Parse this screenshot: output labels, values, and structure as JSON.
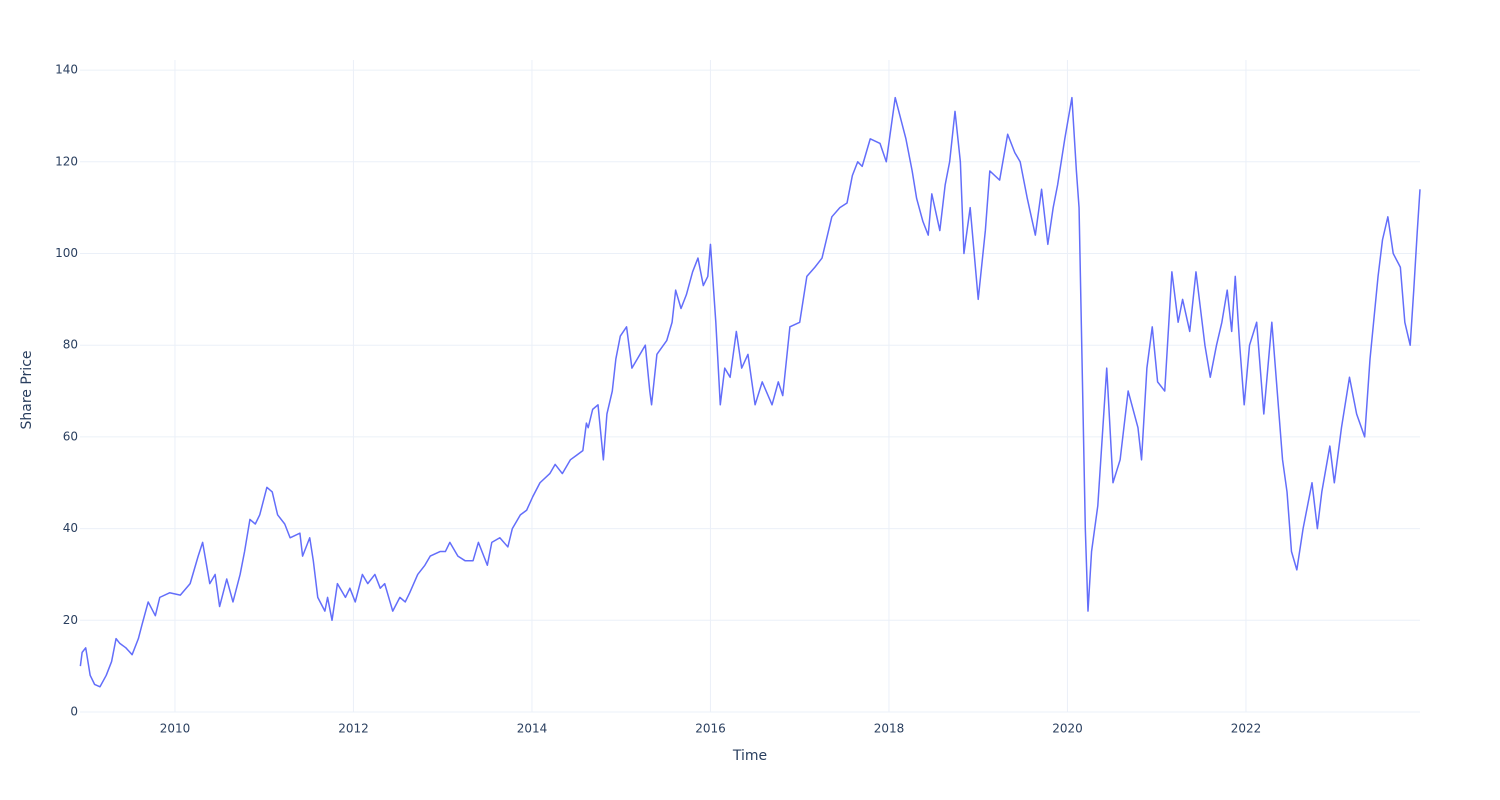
{
  "chart_data": {
    "type": "line",
    "x_label": "Time",
    "y_label": "Share Price",
    "color": "#636efa",
    "grid": true,
    "xlim": [
      2008.936,
      2023.95
    ],
    "ylim": [
      0,
      142.2
    ],
    "xticks": [
      2010,
      2012,
      2014,
      2016,
      2018,
      2020,
      2022
    ],
    "yticks": [
      0,
      20,
      40,
      60,
      80,
      100,
      120,
      140
    ],
    "x": [
      2008.94,
      2008.96,
      2009.0,
      2009.05,
      2009.1,
      2009.16,
      2009.23,
      2009.29,
      2009.34,
      2009.38,
      2009.45,
      2009.52,
      2009.59,
      2009.63,
      2009.7,
      2009.78,
      2009.83,
      2009.94,
      2010.06,
      2010.17,
      2010.26,
      2010.31,
      2010.39,
      2010.45,
      2010.5,
      2010.58,
      2010.65,
      2010.73,
      2010.78,
      2010.84,
      2010.9,
      2010.95,
      2011.03,
      2011.09,
      2011.15,
      2011.23,
      2011.29,
      2011.4,
      2011.43,
      2011.51,
      2011.55,
      2011.6,
      2011.68,
      2011.71,
      2011.76,
      2011.82,
      2011.91,
      2011.96,
      2012.02,
      2012.1,
      2012.16,
      2012.24,
      2012.3,
      2012.35,
      2012.41,
      2012.44,
      2012.52,
      2012.58,
      2012.63,
      2012.72,
      2012.8,
      2012.86,
      2012.97,
      2013.03,
      2013.08,
      2013.17,
      2013.25,
      2013.34,
      2013.4,
      2013.44,
      2013.5,
      2013.55,
      2013.64,
      2013.73,
      2013.78,
      2013.87,
      2013.94,
      2014.01,
      2014.09,
      2014.2,
      2014.26,
      2014.34,
      2014.43,
      2014.5,
      2014.57,
      2014.61,
      2014.63,
      2014.68,
      2014.74,
      2014.76,
      2014.8,
      2014.84,
      2014.9,
      2014.94,
      2014.99,
      2015.06,
      2015.12,
      2015.18,
      2015.27,
      2015.32,
      2015.34,
      2015.4,
      2015.51,
      2015.57,
      2015.61,
      2015.67,
      2015.73,
      2015.8,
      2015.86,
      2015.92,
      2015.97,
      2016.0,
      2016.06,
      2016.11,
      2016.16,
      2016.22,
      2016.29,
      2016.35,
      2016.42,
      2016.5,
      2016.58,
      2016.69,
      2016.76,
      2016.81,
      2016.89,
      2017.0,
      2017.08,
      2017.17,
      2017.25,
      2017.36,
      2017.45,
      2017.53,
      2017.59,
      2017.65,
      2017.7,
      2017.79,
      2017.9,
      2017.97,
      2018.07,
      2018.15,
      2018.19,
      2018.26,
      2018.31,
      2018.38,
      2018.44,
      2018.48,
      2018.57,
      2018.63,
      2018.68,
      2018.74,
      2018.8,
      2018.84,
      2018.91,
      2019.0,
      2019.08,
      2019.13,
      2019.24,
      2019.33,
      2019.41,
      2019.47,
      2019.55,
      2019.64,
      2019.71,
      2019.78,
      2019.84,
      2019.89,
      2019.97,
      2020.05,
      2020.1,
      2020.13,
      2020.16,
      2020.2,
      2020.23,
      2020.27,
      2020.34,
      2020.44,
      2020.51,
      2020.59,
      2020.68,
      2020.79,
      2020.83,
      2020.89,
      2020.95,
      2021.01,
      2021.09,
      2021.17,
      2021.24,
      2021.29,
      2021.37,
      2021.44,
      2021.54,
      2021.6,
      2021.67,
      2021.73,
      2021.79,
      2021.84,
      2021.88,
      2021.93,
      2021.98,
      2022.04,
      2022.12,
      2022.2,
      2022.29,
      2022.35,
      2022.41,
      2022.46,
      2022.51,
      2022.57,
      2022.64,
      2022.74,
      2022.8,
      2022.85,
      2022.94,
      2022.99,
      2023.07,
      2023.16,
      2023.24,
      2023.33,
      2023.39,
      2023.48,
      2023.53,
      2023.59,
      2023.65,
      2023.73,
      2023.78,
      2023.84,
      2023.88,
      2023.92,
      2023.95
    ],
    "values": [
      10,
      13,
      14,
      8,
      6,
      5.5,
      8,
      11,
      16,
      15,
      14,
      12.5,
      16,
      19,
      24,
      21,
      25,
      26,
      25.5,
      28,
      34,
      37,
      28,
      30,
      23,
      29,
      24,
      30,
      35,
      42,
      41,
      43,
      49,
      48,
      43,
      41,
      38,
      39,
      34,
      38,
      33,
      25,
      22,
      25,
      20,
      28,
      25,
      27,
      24,
      30,
      28,
      30,
      27,
      28,
      24,
      22,
      25,
      24,
      26,
      30,
      32,
      34,
      35,
      35,
      37,
      34,
      33,
      33,
      37,
      35,
      32,
      37,
      38,
      36,
      40,
      43,
      44,
      47,
      50,
      52,
      54,
      52,
      55,
      56,
      57,
      63,
      62,
      66,
      67,
      63,
      55,
      65,
      70,
      77,
      82,
      84,
      75,
      77,
      80,
      70,
      67,
      78,
      81,
      85,
      92,
      88,
      91,
      96,
      99,
      93,
      95,
      102,
      85,
      67,
      75,
      73,
      83,
      75,
      78,
      67,
      72,
      67,
      72,
      69,
      84,
      85,
      95,
      97,
      99,
      108,
      110,
      111,
      117,
      120,
      119,
      125,
      124,
      120,
      134,
      128,
      125,
      118,
      112,
      107,
      104,
      113,
      105,
      115,
      120,
      131,
      120,
      100,
      110,
      90,
      105,
      118,
      116,
      126,
      122,
      120,
      112,
      104,
      114,
      102,
      110,
      115,
      125,
      134,
      118,
      110,
      80,
      40,
      22,
      35,
      45,
      75,
      50,
      55,
      70,
      62,
      55,
      75,
      84,
      72,
      70,
      96,
      85,
      90,
      83,
      96,
      80,
      73,
      80,
      85,
      92,
      83,
      95,
      80,
      67,
      80,
      85,
      65,
      85,
      70,
      55,
      48,
      35,
      31,
      40,
      50,
      40,
      48,
      58,
      50,
      62,
      73,
      65,
      60,
      77,
      95,
      103,
      108,
      100,
      97,
      85,
      80,
      92,
      105,
      114
    ]
  }
}
